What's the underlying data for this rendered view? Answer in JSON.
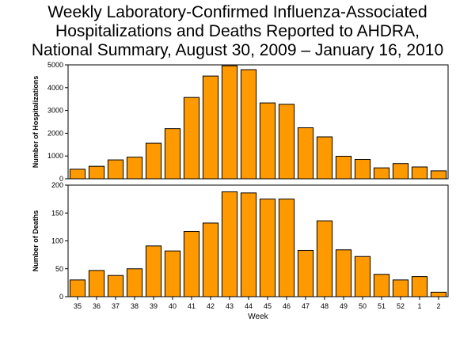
{
  "title_lines": [
    "Weekly Laboratory-Confirmed Influenza-Associated",
    "Hospitalizations and Deaths Reported to AHDRA,",
    "National Summary, August 30, 2009 – January 16, 2010"
  ],
  "bar_color": "#ff9900",
  "chart_data": [
    {
      "type": "bar",
      "ylabel": "Number of Hospitalizations",
      "xlabel": "",
      "ylim": [
        0,
        5000
      ],
      "yticks": [
        0,
        1000,
        2000,
        3000,
        4000,
        5000
      ],
      "categories": [
        "35",
        "36",
        "37",
        "38",
        "39",
        "40",
        "41",
        "42",
        "43",
        "44",
        "45",
        "46",
        "47",
        "48",
        "49",
        "50",
        "51",
        "52",
        "1",
        "2"
      ],
      "values": [
        420,
        550,
        830,
        950,
        1560,
        2200,
        3570,
        4510,
        4960,
        4790,
        3330,
        3270,
        2240,
        1840,
        990,
        850,
        480,
        670,
        520,
        350
      ]
    },
    {
      "type": "bar",
      "ylabel": "Number of Deaths",
      "xlabel": "Week",
      "ylim": [
        0,
        200
      ],
      "yticks": [
        0,
        50,
        100,
        150,
        200
      ],
      "categories": [
        "35",
        "36",
        "37",
        "38",
        "39",
        "40",
        "41",
        "42",
        "43",
        "44",
        "45",
        "46",
        "47",
        "48",
        "49",
        "50",
        "51",
        "52",
        "1",
        "2"
      ],
      "values": [
        30,
        47,
        38,
        50,
        91,
        82,
        117,
        132,
        188,
        186,
        175,
        175,
        83,
        136,
        84,
        72,
        40,
        30,
        36,
        8
      ]
    }
  ]
}
